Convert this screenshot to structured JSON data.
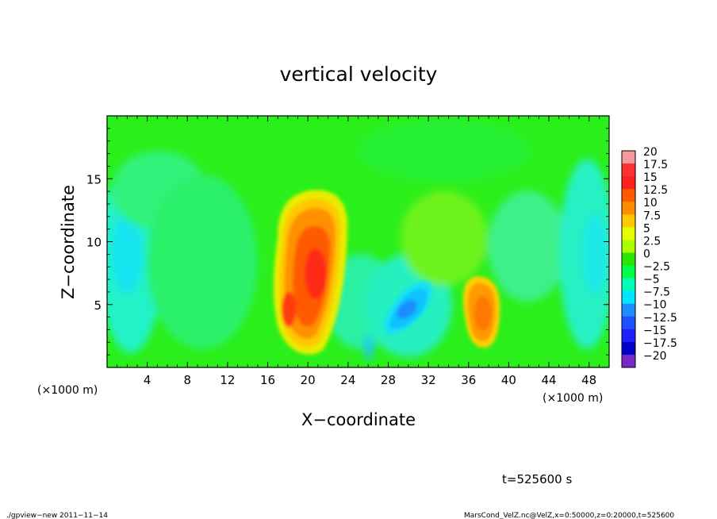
{
  "chart_data": {
    "type": "heatmap",
    "title": "vertical velocity",
    "xlabel": "X−coordinate",
    "ylabel": "Z−coordinate",
    "x_unit": "(×1000 m)",
    "y_unit": "(×1000 m)",
    "xlim": [
      0,
      50
    ],
    "ylim": [
      0,
      20
    ],
    "x_ticks": [
      4,
      8,
      12,
      16,
      20,
      24,
      28,
      32,
      36,
      40,
      44,
      48
    ],
    "y_ticks": [
      5,
      10,
      15
    ],
    "x_tick_labels": [
      "4",
      "8",
      "12",
      "16",
      "20",
      "24",
      "28",
      "32",
      "36",
      "40",
      "44",
      "48"
    ],
    "y_tick_labels": [
      "5",
      "10",
      "15"
    ],
    "colorbar": {
      "labels": [
        "20",
        "17.5",
        "15",
        "12.5",
        "10",
        "7.5",
        "5",
        "2.5",
        "0",
        "−2.5",
        "−5",
        "−7.5",
        "−10",
        "−12.5",
        "−15",
        "−17.5",
        "−20"
      ],
      "colors": [
        "#f59a9a",
        "#ff3030",
        "#ff2020",
        "#ff5a00",
        "#ff8c00",
        "#ffc800",
        "#e6ff00",
        "#a8ff00",
        "#28e600",
        "#00ff46",
        "#00ffb4",
        "#00e6ff",
        "#1e8cff",
        "#1e50ff",
        "#1e1eff",
        "#0000c8",
        "#7a28c8"
      ]
    },
    "features": [
      {
        "name": "updraft core",
        "x": 20.5,
        "z": 7.5,
        "value": 12.5
      },
      {
        "name": "updraft lower lobe",
        "x": 18.0,
        "z": 4.2,
        "value": 12.5
      },
      {
        "name": "downdraft",
        "x": 30.0,
        "z": 4.6,
        "value": -10
      },
      {
        "name": "updraft",
        "x": 37.5,
        "z": 4.3,
        "value": 10
      },
      {
        "name": "weak downdraft",
        "x": 2.5,
        "z": 8.0,
        "value": -6
      },
      {
        "name": "weak downdraft",
        "x": 48.5,
        "z": 9.0,
        "value": -5
      }
    ],
    "time_label": "t=525600 s",
    "footer_left": "./gpview−new  2011−11−14",
    "footer_right": "MarsCond_VelZ.nc@VelZ,x=0:50000,z=0:20000,t=525600"
  }
}
